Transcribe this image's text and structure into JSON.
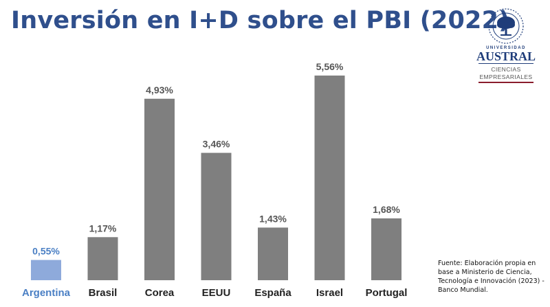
{
  "header": {
    "title": "Inversión en I+D sobre el PBI (2022)"
  },
  "logo": {
    "small_text": "UNIVERSIDAD",
    "name": "AUSTRAL",
    "dept_line1": "CIENCIAS",
    "dept_line2": "EMPRESARIALES",
    "colors": {
      "navy": "#1f3d7a",
      "burgundy": "#8a1c2c"
    }
  },
  "source_note": "Fuente: Elaboración propia en base a Ministerio de Ciencia, Tecnología e Innovación (2023) - Banco Mundial.",
  "chart_data": {
    "type": "bar",
    "title": "Inversión en I+D sobre el PBI (2022)",
    "categories": [
      "Argentina",
      "Brasil",
      "Corea",
      "EEUU",
      "España",
      "Israel",
      "Portugal"
    ],
    "values": [
      0.55,
      1.17,
      4.93,
      3.46,
      1.43,
      5.56,
      1.68
    ],
    "value_labels": [
      "0,55%",
      "1,17%",
      "4,93%",
      "3,46%",
      "1,43%",
      "5,56%",
      "1,68%"
    ],
    "unit": "%",
    "ylim": [
      0,
      5.56
    ],
    "grid": false,
    "legend": "none",
    "highlight_index": 0,
    "colors": {
      "bar": "#7f7f7f",
      "highlight_bar": "#8eaadb",
      "label": "#555555",
      "highlight_label": "#4a7fc4",
      "title": "#2f4f8c"
    }
  }
}
